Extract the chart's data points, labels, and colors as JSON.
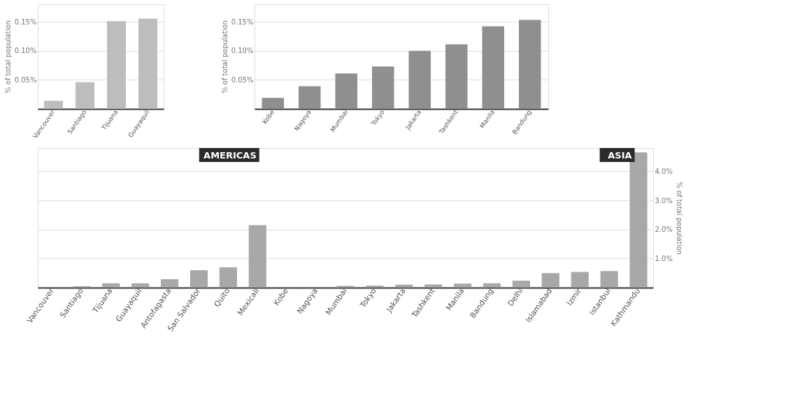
{
  "chart_data": [
    {
      "type": "bar",
      "categories": [
        "Vancouver",
        "Santiago",
        "Tijuana",
        "Guayaquil"
      ],
      "values": [
        0.014,
        0.046,
        0.151,
        0.155
      ],
      "color": "#bdbdbd",
      "ylabel": "% of total population",
      "ylim": [
        0,
        0.18
      ],
      "yticks": [
        {
          "value": 0.05,
          "label": "0.05%"
        },
        {
          "value": 0.1,
          "label": "0.10%"
        },
        {
          "value": 0.15,
          "label": "0.15%"
        }
      ],
      "grid": "y"
    },
    {
      "type": "bar",
      "categories": [
        "Kobe",
        "Nagoya",
        "Mumbai",
        "Tokyo",
        "Jakarta",
        "Tashkent",
        "Manila",
        "Bandung"
      ],
      "values": [
        0.019,
        0.039,
        0.061,
        0.073,
        0.1,
        0.111,
        0.142,
        0.153
      ],
      "color": "#8f8f8f",
      "ylabel": "% of total population",
      "ylim": [
        0,
        0.18
      ],
      "yticks": [
        {
          "value": 0.05,
          "label": "0.05%"
        },
        {
          "value": 0.1,
          "label": "0.10%"
        },
        {
          "value": 0.15,
          "label": "0.15%"
        }
      ],
      "grid": "y"
    },
    {
      "type": "bar",
      "categories": [
        "Vancouver",
        "Santiago",
        "Tijuana",
        "Guayaquil",
        "Antofagasta",
        "San Salvador",
        "Quito",
        "Mexicali",
        "Kobe",
        "Nagoya",
        "Mumbai",
        "Tokyo",
        "Jakarta",
        "Tashkent",
        "Manila",
        "Bandung",
        "Delhi",
        "Islamabad",
        "Izmir",
        "Istanbul",
        "Kathmandu"
      ],
      "values": [
        null,
        0.05,
        0.15,
        0.15,
        0.29,
        0.6,
        0.7,
        2.15,
        null,
        null,
        0.06,
        0.07,
        0.1,
        0.11,
        0.14,
        0.15,
        0.24,
        0.5,
        0.54,
        0.57,
        4.65
      ],
      "color": "#a8a8a8",
      "ylabel": "% of total population",
      "ylim": [
        0,
        4.8
      ],
      "yticks": [
        {
          "value": 1,
          "label": "1.0%"
        },
        {
          "value": 2,
          "label": "2.0%"
        },
        {
          "value": 3,
          "label": "3.0%"
        },
        {
          "value": 4,
          "label": "4.0%"
        }
      ],
      "grid": "y",
      "annotations": [
        "AMERICAS",
        "ASIA"
      ]
    }
  ]
}
